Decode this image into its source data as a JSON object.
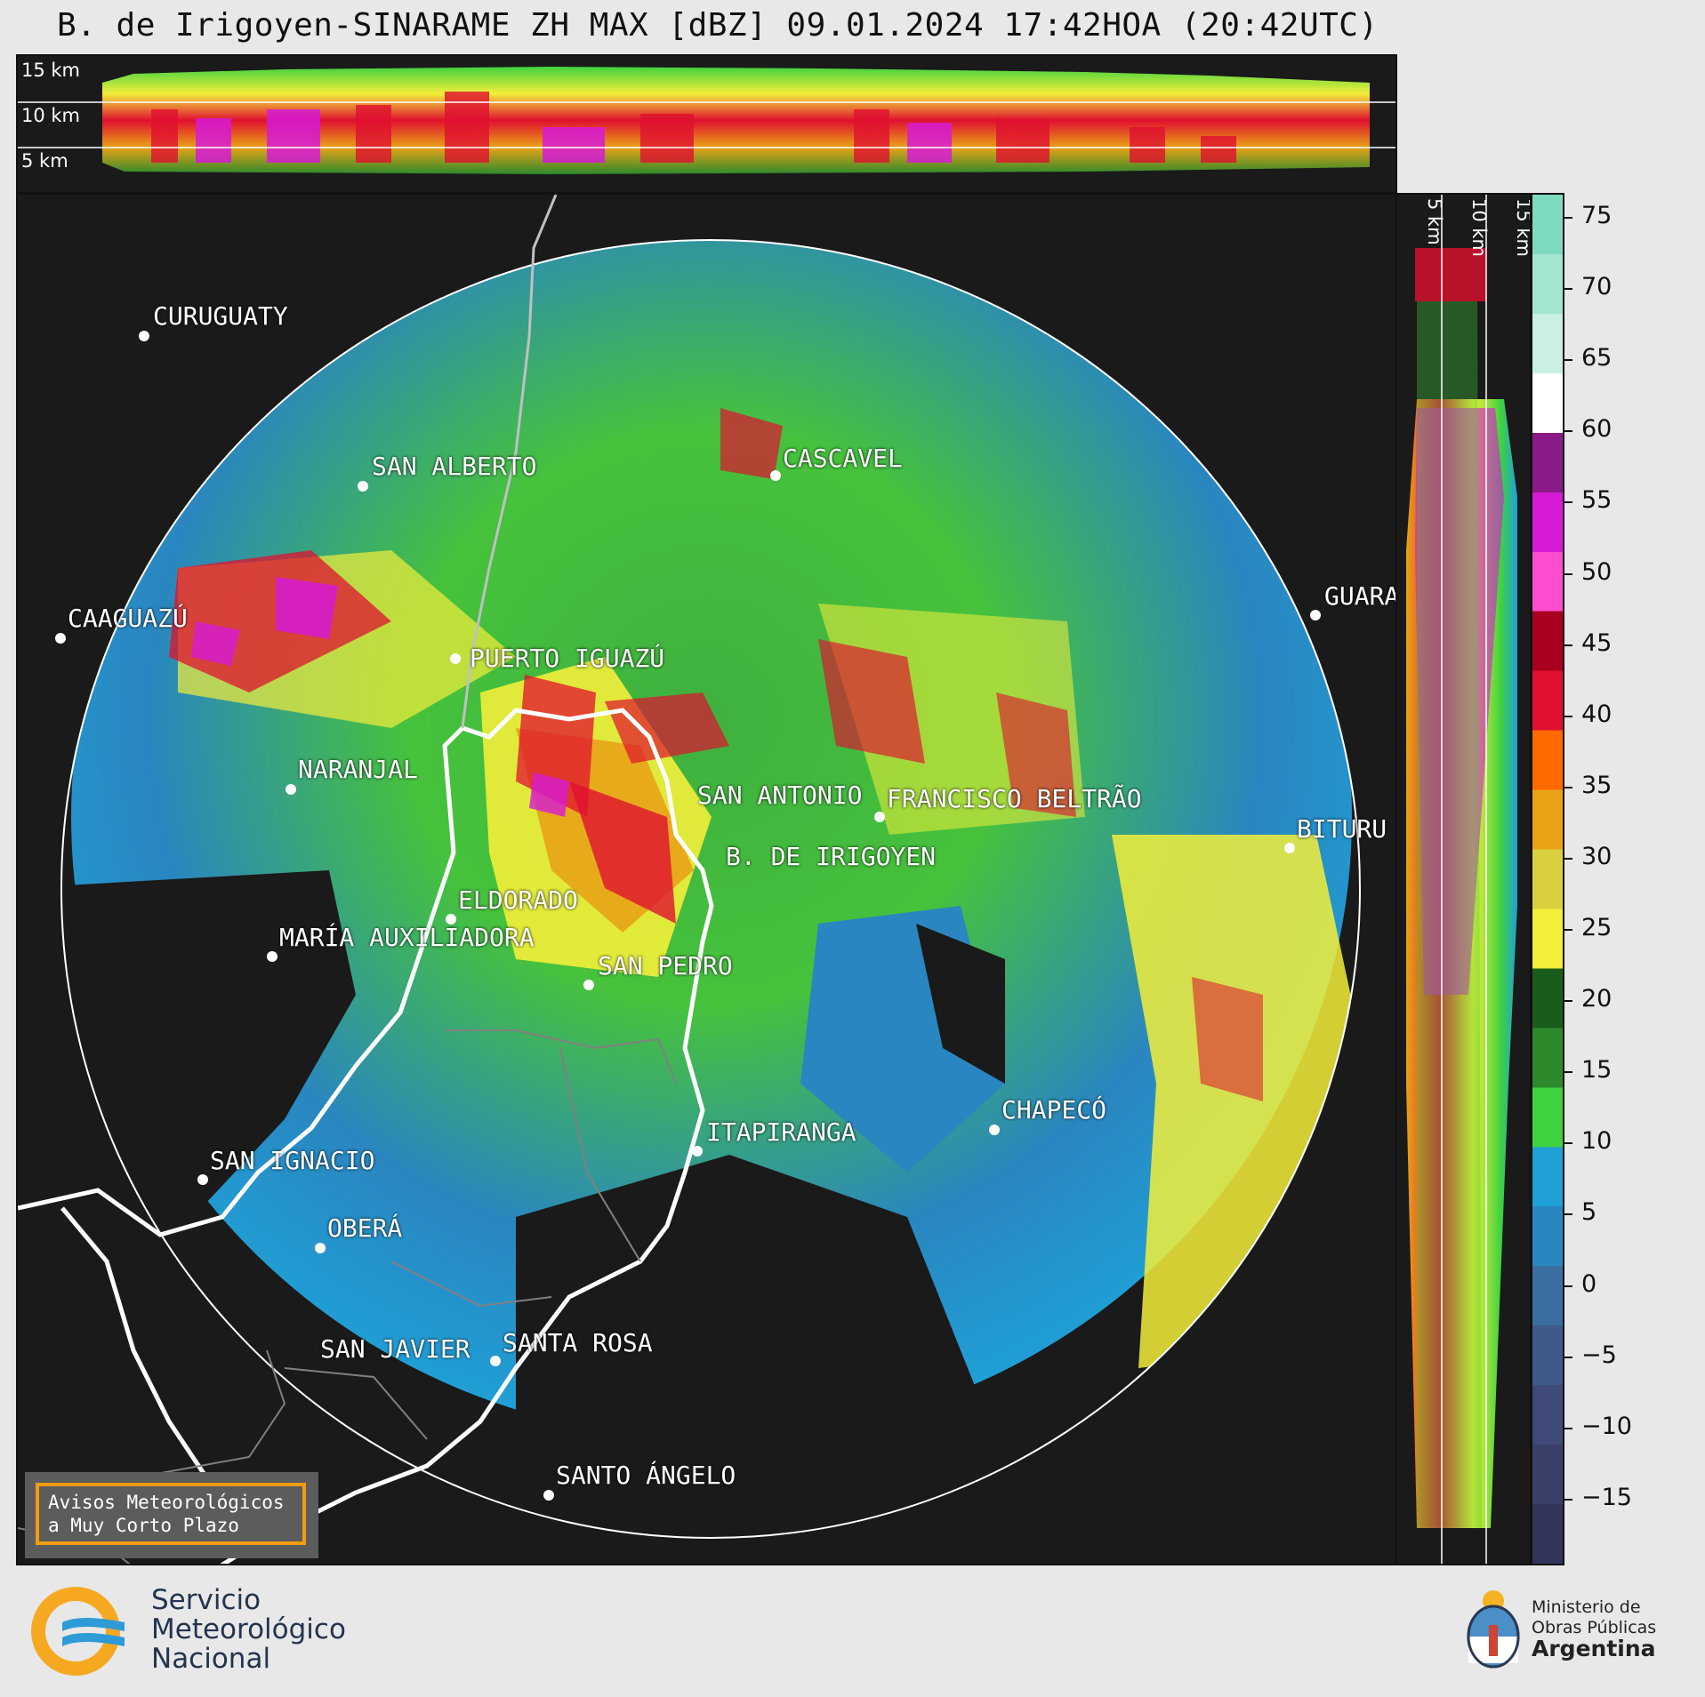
{
  "title": "B. de Irigoyen-SINARAME ZH MAX [dBZ] 09.01.2024 17:42HOA (20:42UTC)",
  "height_labels": [
    "15 km",
    "10 km",
    "5 km"
  ],
  "side_height_labels": [
    "5 km",
    "10 km",
    "15 km"
  ],
  "colorbar": {
    "ticks": [
      "75",
      "70",
      "65",
      "60",
      "55",
      "50",
      "45",
      "40",
      "35",
      "30",
      "25",
      "20",
      "15",
      "10",
      "5",
      "0",
      "−5",
      "−10",
      "−15"
    ],
    "colors_top_to_bottom": [
      "#7fdbbf",
      "#a3e6cf",
      "#c9f0e2",
      "#ffffff",
      "#8b1a89",
      "#d61ad6",
      "#ff4dd2",
      "#a8001e",
      "#e0102f",
      "#ff6a00",
      "#e8a317",
      "#d9d040",
      "#f3ee3a",
      "#1a5c1a",
      "#2c8a2c",
      "#3fd23f",
      "#1fa0d6",
      "#2a86c0",
      "#3a6ea0",
      "#3f5a88",
      "#3f4a78",
      "#3a3f6a",
      "#33355c"
    ]
  },
  "cities": [
    {
      "name": "CURUGUATY"
    },
    {
      "name": "SAN ALBERTO"
    },
    {
      "name": "CASCAVEL"
    },
    {
      "name": "CAAGUAZÚ"
    },
    {
      "name": "GUARA"
    },
    {
      "name": "PUERTO IGUAZÚ"
    },
    {
      "name": "NARANJAL"
    },
    {
      "name": "SAN ANTONIO"
    },
    {
      "name": "FRANCISCO BELTRÃO"
    },
    {
      "name": "BITURU"
    },
    {
      "name": "B. DE IRIGOYEN"
    },
    {
      "name": "ELDORADO"
    },
    {
      "name": "MARÍA AUXILIADORA"
    },
    {
      "name": "SAN PEDRO"
    },
    {
      "name": "CHAPECÓ"
    },
    {
      "name": "ITAPIRANGA"
    },
    {
      "name": "SAN IGNACIO"
    },
    {
      "name": "OBERÁ"
    },
    {
      "name": "SAN JAVIER"
    },
    {
      "name": "SANTA ROSA"
    },
    {
      "name": "SANTO ÁNGELO"
    }
  ],
  "alert": {
    "line1": "Avisos Meteorológicos",
    "line2": "a Muy Corto Plazo"
  },
  "smn": {
    "line1": "Servicio",
    "line2": "Meteorológico",
    "line3": "Nacional"
  },
  "ministry": {
    "line1": "Ministerio de",
    "line2": "Obras Públicas",
    "line3": "Argentina"
  }
}
